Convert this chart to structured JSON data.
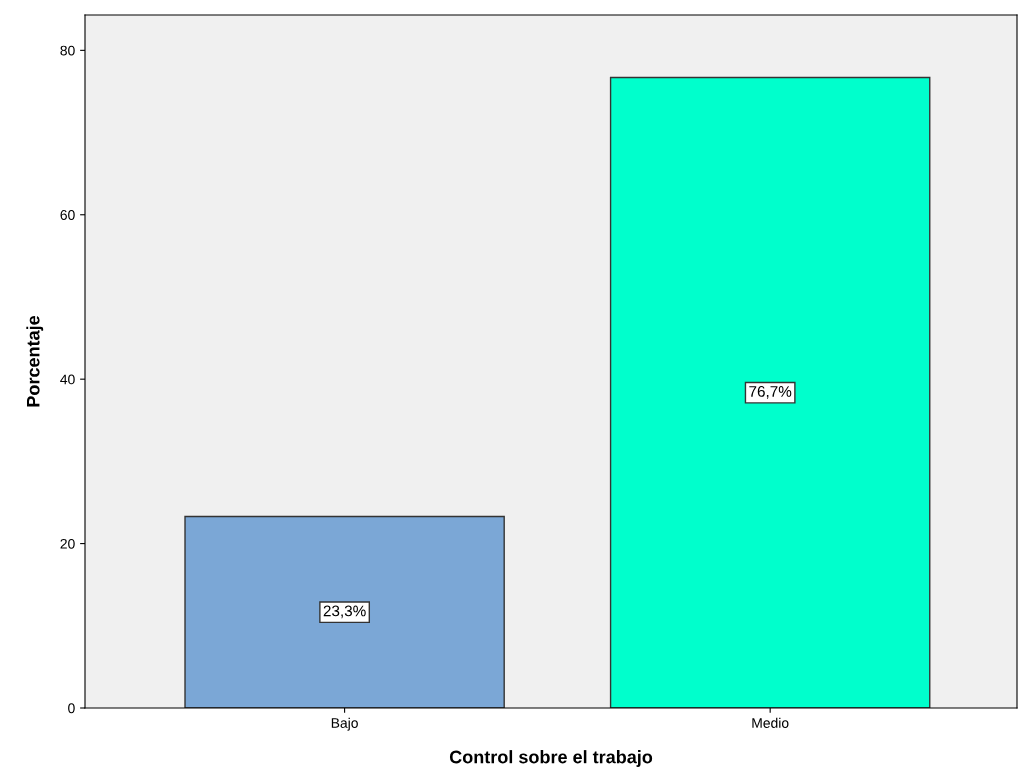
{
  "chart_data": {
    "type": "bar",
    "xlabel": "Control sobre el trabajo",
    "ylabel": "Porcentaje",
    "categories": [
      "Bajo",
      "Medio"
    ],
    "values": [
      23.3,
      76.7
    ],
    "colors": [
      "#7ba7d6",
      "#00ffcc"
    ],
    "value_labels": [
      "23,3%",
      "76,7%"
    ],
    "ylim": [
      0,
      84.3
    ],
    "yticks": [
      0,
      20,
      40,
      60,
      80
    ],
    "grid": false,
    "legend": false
  }
}
